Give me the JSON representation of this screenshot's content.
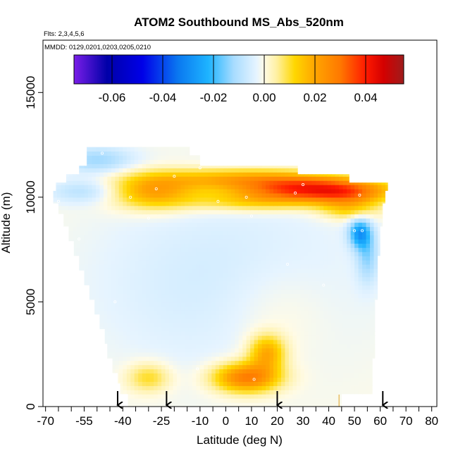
{
  "chart_data": {
    "type": "heatmap",
    "title": "ATOM2 Southbound MS_Abs_520nm",
    "subtitle_flights": "Flts: 2,3,4,5,6",
    "subtitle_dates": "MMDD: 0129,0201,0203,0205,0210",
    "xlabel": "Latitude (deg N)",
    "ylabel": "Altitude (m)",
    "xlim": [
      -71,
      82
    ],
    "ylim": [
      0,
      17500
    ],
    "x_tick_labels": [
      "-70",
      "-55",
      "-40",
      "-25",
      "-10",
      "0",
      "10",
      "20",
      "30",
      "40",
      "50",
      "60",
      "70",
      "80"
    ],
    "x_major_ticks": [
      -70,
      -55,
      -40,
      -25,
      -10,
      0,
      10,
      20,
      30,
      40,
      50,
      60,
      70,
      80
    ],
    "x_minor_ticks": [
      -65,
      -60,
      -50,
      -45,
      -35,
      -30,
      -20,
      -15,
      -5,
      5,
      15,
      25,
      35,
      45,
      55,
      65,
      75
    ],
    "y_ticks": [
      0,
      5000,
      10000,
      15000
    ],
    "y_tick_labels": [
      "0",
      "5000",
      "10000",
      "15000"
    ],
    "colorbar": {
      "range": [
        -0.075,
        0.055
      ],
      "tick_values": [
        -0.06,
        -0.04,
        -0.02,
        0.0,
        0.02,
        0.04
      ],
      "tick_labels": [
        "-0.06",
        "-0.04",
        "-0.02",
        "0.00",
        "0.02",
        "0.04"
      ],
      "stops": [
        {
          "value": -0.075,
          "color": "#7a1ee8"
        },
        {
          "value": -0.062,
          "color": "#0000a8"
        },
        {
          "value": -0.048,
          "color": "#0000e8"
        },
        {
          "value": -0.034,
          "color": "#0a78f0"
        },
        {
          "value": -0.022,
          "color": "#1eb4ff"
        },
        {
          "value": -0.012,
          "color": "#a8dcff"
        },
        {
          "value": -0.003,
          "color": "#e6f4ff"
        },
        {
          "value": 0.0,
          "color": "#fffbe6"
        },
        {
          "value": 0.005,
          "color": "#fff0a0"
        },
        {
          "value": 0.012,
          "color": "#ffd700"
        },
        {
          "value": 0.02,
          "color": "#ffa500"
        },
        {
          "value": 0.03,
          "color": "#ff7800"
        },
        {
          "value": 0.04,
          "color": "#ff1a00"
        },
        {
          "value": 0.047,
          "color": "#d40000"
        },
        {
          "value": 0.055,
          "color": "#9e1c1c"
        }
      ]
    },
    "domain_boundary": {
      "description": "Latitude extent of data at each altitude (flight curtain outline)",
      "rows": [
        {
          "alt_low": 0,
          "alt_high": 600,
          "lat_min": -38,
          "lat_max": 45
        },
        {
          "alt_low": 600,
          "alt_high": 1100,
          "lat_min": -41,
          "lat_max": 57
        },
        {
          "alt_low": 1100,
          "alt_high": 1600,
          "lat_min": -42,
          "lat_max": 57
        },
        {
          "alt_low": 1600,
          "alt_high": 2300,
          "lat_min": -44,
          "lat_max": 57
        },
        {
          "alt_low": 2300,
          "alt_high": 3000,
          "lat_min": -46,
          "lat_max": 58
        },
        {
          "alt_low": 3000,
          "alt_high": 3700,
          "lat_min": -47,
          "lat_max": 58
        },
        {
          "alt_low": 3700,
          "alt_high": 4400,
          "lat_min": -49,
          "lat_max": 58
        },
        {
          "alt_low": 4400,
          "alt_high": 5100,
          "lat_min": -51,
          "lat_max": 58
        },
        {
          "alt_low": 5100,
          "alt_high": 5800,
          "lat_min": -53,
          "lat_max": 59
        },
        {
          "alt_low": 5800,
          "alt_high": 6500,
          "lat_min": -55,
          "lat_max": 59
        },
        {
          "alt_low": 6500,
          "alt_high": 7200,
          "lat_min": -57,
          "lat_max": 59
        },
        {
          "alt_low": 7200,
          "alt_high": 7900,
          "lat_min": -59,
          "lat_max": 60
        },
        {
          "alt_low": 7900,
          "alt_high": 8600,
          "lat_min": -61,
          "lat_max": 60
        },
        {
          "alt_low": 8600,
          "alt_high": 9200,
          "lat_min": -63,
          "lat_max": 61
        },
        {
          "alt_low": 9200,
          "alt_high": 9700,
          "lat_min": -65,
          "lat_max": 61
        },
        {
          "alt_low": 9700,
          "alt_high": 10300,
          "lat_min": -67,
          "lat_max": 62
        },
        {
          "alt_low": 10300,
          "alt_high": 10700,
          "lat_min": -66,
          "lat_max": 63
        },
        {
          "alt_low": 10700,
          "alt_high": 11100,
          "lat_min": -62,
          "lat_max": 48
        },
        {
          "alt_low": 11100,
          "alt_high": 11500,
          "lat_min": -57,
          "lat_max": 28
        },
        {
          "alt_low": 11500,
          "alt_high": 12000,
          "lat_min": -54,
          "lat_max": -10
        },
        {
          "alt_low": 12000,
          "alt_high": 12400,
          "lat_min": -54,
          "lat_max": -14
        }
      ]
    },
    "anomalies": [
      {
        "lat": 33,
        "alt": 10400,
        "sigma_lat": 20,
        "sigma_alt": 420,
        "amplitude": 0.038
      },
      {
        "lat": 48,
        "alt": 10100,
        "sigma_lat": 10,
        "sigma_alt": 380,
        "amplitude": 0.012
      },
      {
        "lat": 5,
        "alt": 10900,
        "sigma_lat": 22,
        "sigma_alt": 350,
        "amplitude": 0.018
      },
      {
        "lat": -28,
        "alt": 10300,
        "sigma_lat": 12,
        "sigma_alt": 600,
        "amplitude": 0.022
      },
      {
        "lat": 10,
        "alt": 9800,
        "sigma_lat": 18,
        "sigma_alt": 350,
        "amplitude": 0.012
      },
      {
        "lat": 48,
        "alt": 9400,
        "sigma_lat": 8,
        "sigma_alt": 350,
        "amplitude": 0.012
      },
      {
        "lat": 8,
        "alt": 1400,
        "sigma_lat": 9,
        "sigma_alt": 500,
        "amplitude": 0.03
      },
      {
        "lat": 16,
        "alt": 2600,
        "sigma_lat": 5,
        "sigma_alt": 600,
        "amplitude": 0.02
      },
      {
        "lat": -30,
        "alt": 1400,
        "sigma_lat": 6,
        "sigma_alt": 500,
        "amplitude": 0.012
      },
      {
        "lat": 52,
        "alt": 8300,
        "sigma_lat": 3,
        "sigma_alt": 500,
        "amplitude": -0.024
      },
      {
        "lat": 55,
        "alt": 7200,
        "sigma_lat": 3,
        "sigma_alt": 900,
        "amplitude": -0.012
      },
      {
        "lat": -50,
        "alt": 11800,
        "sigma_lat": 10,
        "sigma_alt": 450,
        "amplitude": -0.012
      },
      {
        "lat": -55,
        "alt": 10300,
        "sigma_lat": 10,
        "sigma_alt": 400,
        "amplitude": -0.009
      },
      {
        "lat": 0,
        "alt": 6000,
        "sigma_lat": 40,
        "sigma_alt": 3500,
        "amplitude": -0.006
      },
      {
        "lat": 20,
        "alt": 4500,
        "sigma_lat": 15,
        "sigma_alt": 1800,
        "amplitude": 0.004
      }
    ],
    "points": [
      {
        "lat": -48,
        "alt": 12100
      },
      {
        "lat": -27,
        "alt": 10400
      },
      {
        "lat": -37,
        "alt": 10000
      },
      {
        "lat": -30,
        "alt": 9000
      },
      {
        "lat": -68,
        "alt": 10000
      },
      {
        "lat": -65,
        "alt": 9800
      },
      {
        "lat": -57,
        "alt": 8000
      },
      {
        "lat": -62,
        "alt": 7300
      },
      {
        "lat": -43,
        "alt": 5000
      },
      {
        "lat": -10,
        "alt": 11400
      },
      {
        "lat": -3,
        "alt": 9800
      },
      {
        "lat": 8,
        "alt": 10000
      },
      {
        "lat": 10,
        "alt": 9100
      },
      {
        "lat": 27,
        "alt": 10200
      },
      {
        "lat": 30,
        "alt": 10600
      },
      {
        "lat": 52,
        "alt": 10100
      },
      {
        "lat": 50,
        "alt": 8400
      },
      {
        "lat": 53,
        "alt": 8400
      },
      {
        "lat": 11,
        "alt": 1300
      },
      {
        "lat": 24,
        "alt": 6800
      },
      {
        "lat": -20,
        "alt": 11000
      },
      {
        "lat": -11,
        "alt": 1800
      },
      {
        "lat": 38,
        "alt": 5800
      }
    ],
    "flight_markers_lat": [
      -42,
      -23,
      20,
      61
    ],
    "vertical_marker_lat": 44
  }
}
